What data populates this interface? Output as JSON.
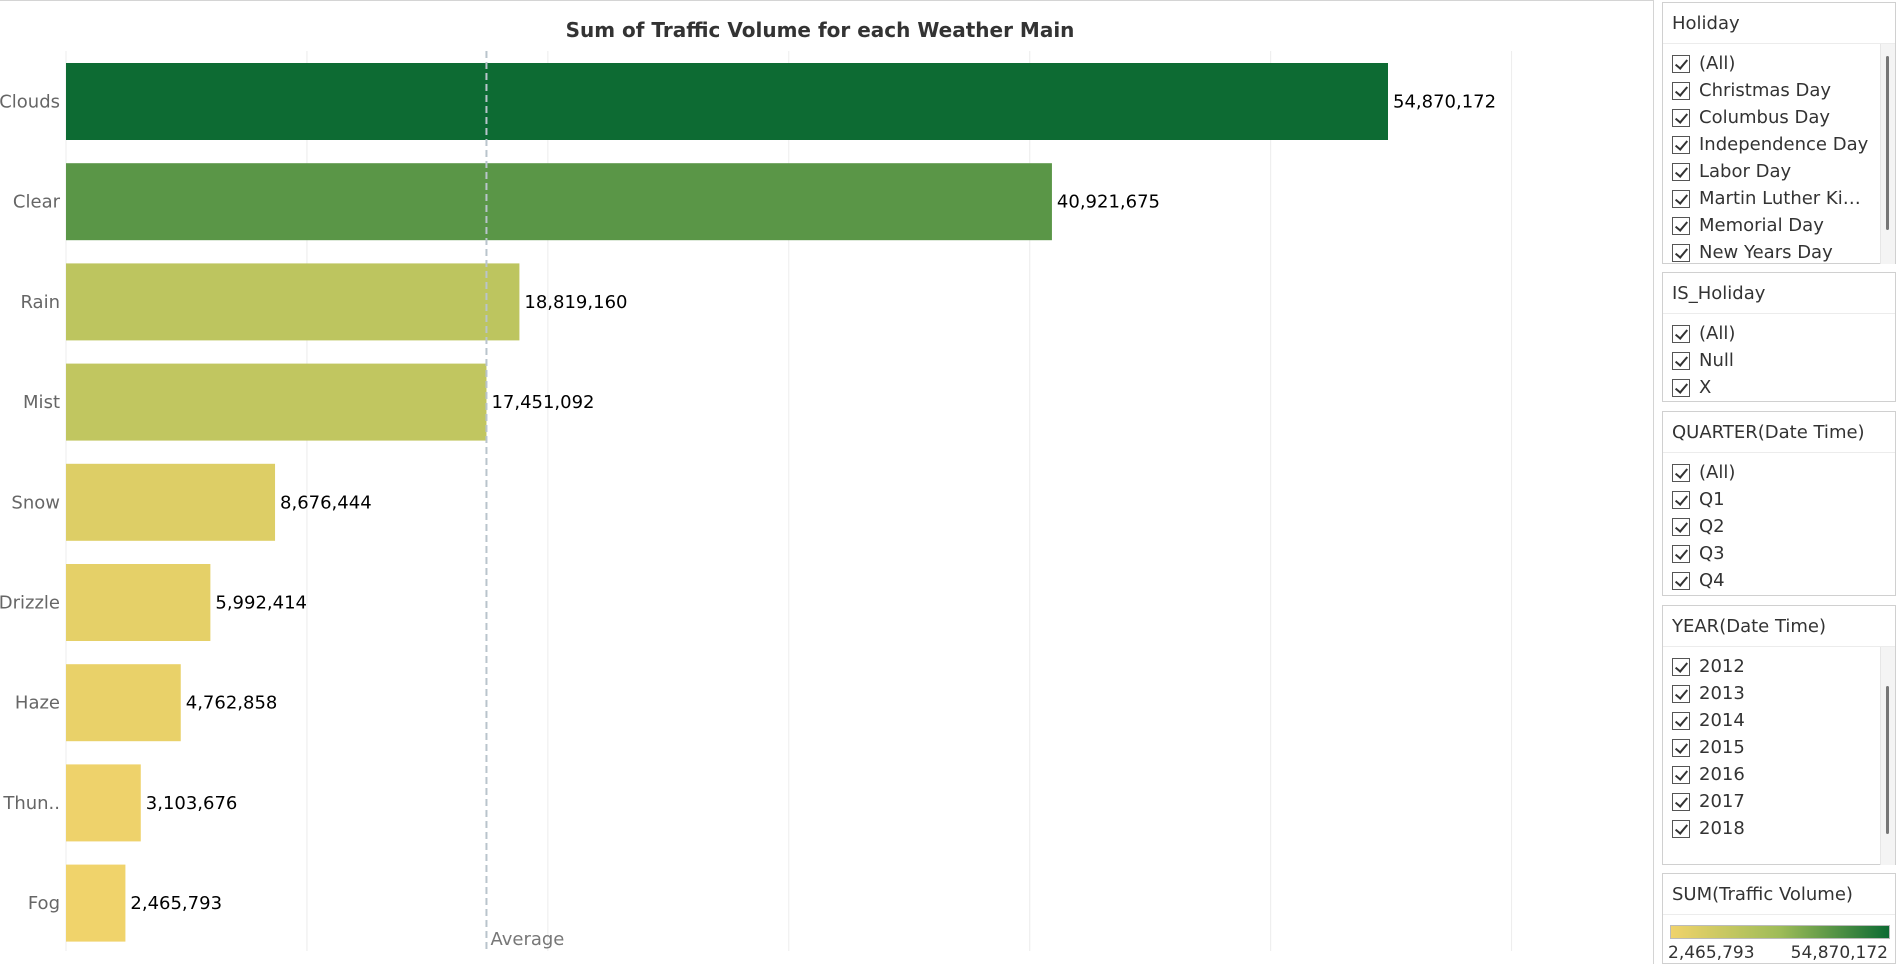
{
  "chart_data": {
    "type": "bar",
    "orientation": "horizontal",
    "title": "Sum of Traffic Volume for each Weather Main",
    "xlabel": "",
    "ylabel": "",
    "categories": [
      "Clouds",
      "Clear",
      "Rain",
      "Mist",
      "Snow",
      "Drizzle",
      "Haze",
      "Thun..",
      "Fog"
    ],
    "values": [
      54870172,
      40921675,
      18819160,
      17451092,
      8676444,
      5992414,
      4762858,
      3103676,
      2465793
    ],
    "value_labels": [
      "54,870,172",
      "40,921,675",
      "18,819,160",
      "17,451,092",
      "8,676,444",
      "5,992,414",
      "4,762,858",
      "3,103,676",
      "2,465,793"
    ],
    "xlim": [
      0,
      65000000
    ],
    "gridlines": [
      0,
      10000000,
      20000000,
      30000000,
      40000000,
      50000000,
      60000000
    ],
    "grid": true,
    "reference_line": {
      "label": "Average",
      "value": 17451092
    },
    "color_scale": {
      "low": "#f0d36b",
      "mid": "#9ebc58",
      "high": "#0d6b33"
    }
  },
  "filters": [
    {
      "title": "Holiday",
      "items": [
        "(All)",
        "Christmas Day",
        "Columbus Day",
        "Independence Day",
        "Labor Day",
        "Martin Luther Kin...",
        "Memorial Day",
        "New Years Day"
      ],
      "scroll_thumb": 0.93
    },
    {
      "title": "IS_Holiday",
      "items": [
        "(All)",
        "Null",
        "X"
      ]
    },
    {
      "title": "QUARTER(Date Time)",
      "items": [
        "(All)",
        "Q1",
        "Q2",
        "Q3",
        "Q4"
      ]
    },
    {
      "title": "YEAR(Date Time)",
      "items": [
        "2012",
        "2013",
        "2014",
        "2015",
        "2016",
        "2017",
        "2018"
      ],
      "scroll_thumb": 0.8
    }
  ],
  "legend": {
    "title": "SUM(Traffic Volume)",
    "min_label": "2,465,793",
    "max_label": "54,870,172"
  }
}
